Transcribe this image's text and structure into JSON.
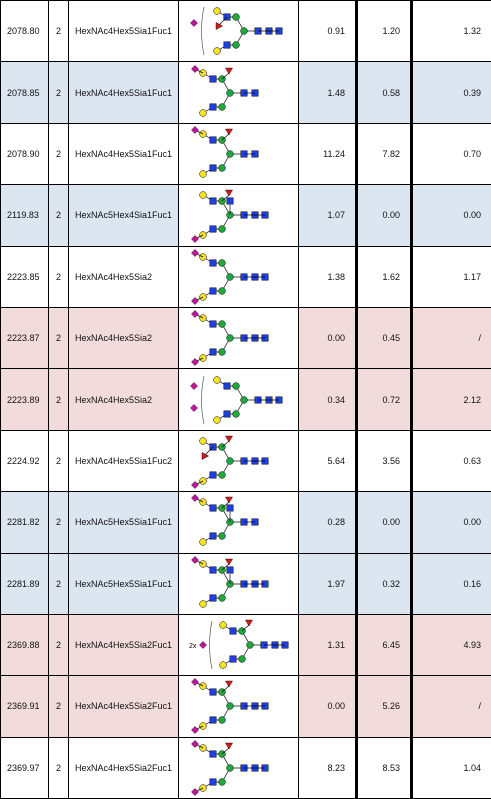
{
  "colors": {
    "row_white": "#ffffff",
    "row_blue": "#dce6f1",
    "row_pink": "#f2dcdb",
    "hexnac_square": "#1f3fe0",
    "hexose_mannose_circle": "#1fa83c",
    "galactose_circle": "#f5e51c",
    "sialic_acid_diamond": "#c0169c",
    "fucose_triangle": "#d31a1a"
  },
  "rows": [
    {
      "mass": "2078.80",
      "charge": "2",
      "composition": "HexNAc4Hex5Sia1Fuc1",
      "glycan_icon": "bracket-sia-antenna-glycan-icon",
      "v1": "0.91",
      "v2": "1.20",
      "v3": "1.32",
      "shade": "white"
    },
    {
      "mass": "2078.85",
      "charge": "2",
      "composition": "HexNAc4Hex5Sia1Fuc1",
      "glycan_icon": "biantennary-fuc-top-glycan-icon",
      "v1": "1.48",
      "v2": "0.58",
      "v3": "0.39",
      "shade": "blue"
    },
    {
      "mass": "2078.90",
      "charge": "2",
      "composition": "HexNAc4Hex5Sia1Fuc1",
      "glycan_icon": "biantennary-fuc-top-glycan-icon",
      "v1": "11.24",
      "v2": "7.82",
      "v3": "0.70",
      "shade": "white"
    },
    {
      "mass": "2119.83",
      "charge": "2",
      "composition": "HexNAc5Hex4Sia1Fuc1",
      "glycan_icon": "bisected-fuc-glycan-icon",
      "v1": "1.07",
      "v2": "0.00",
      "v3": "0.00",
      "shade": "blue"
    },
    {
      "mass": "2223.85",
      "charge": "2",
      "composition": "HexNAc4Hex5Sia2",
      "glycan_icon": "biantennary-two-sia-glycan-icon",
      "v1": "1.38",
      "v2": "1.62",
      "v3": "1.17",
      "shade": "white"
    },
    {
      "mass": "2223.87",
      "charge": "2",
      "composition": "HexNAc4Hex5Sia2",
      "glycan_icon": "biantennary-two-sia-glycan-icon",
      "v1": "0.00",
      "v2": "0.45",
      "v3": "/",
      "shade": "pink"
    },
    {
      "mass": "2223.89",
      "charge": "2",
      "composition": "HexNAc4Hex5Sia2",
      "glycan_icon": "bracket-two-sia-glycan-icon",
      "v1": "0.34",
      "v2": "0.72",
      "v3": "2.12",
      "shade": "pink"
    },
    {
      "mass": "2224.92",
      "charge": "2",
      "composition": "HexNAc4Hex5Sia1Fuc2",
      "glycan_icon": "biantennary-two-fuc-glycan-icon",
      "v1": "5.64",
      "v2": "3.56",
      "v3": "0.63",
      "shade": "white"
    },
    {
      "mass": "2281.82",
      "charge": "2",
      "composition": "HexNAc5Hex5Sia1Fuc1",
      "glycan_icon": "hybrid-sia-fuc-glycan-icon",
      "v1": "0.28",
      "v2": "0.00",
      "v3": "0.00",
      "shade": "blue"
    },
    {
      "mass": "2281.89",
      "charge": "2",
      "composition": "HexNAc5Hex5Sia1Fuc1",
      "glycan_icon": "bisected-biantennary-fuc-glycan-icon",
      "v1": "1.97",
      "v2": "0.32",
      "v3": "0.16",
      "shade": "blue"
    },
    {
      "mass": "2369.88",
      "charge": "2",
      "composition": "HexNAc4Hex5Sia2Fuc1",
      "glycan_icon": "bracket-2x-sia-fuc-glycan-icon",
      "v1": "1.31",
      "v2": "6.45",
      "v3": "4.93",
      "shade": "pink",
      "glycan_multiplier": "2x"
    },
    {
      "mass": "2369.91",
      "charge": "2",
      "composition": "HexNAc4Hex5Sia2Fuc1",
      "glycan_icon": "biantennary-two-sia-fuc-glycan-icon",
      "v1": "0.00",
      "v2": "5.26",
      "v3": "/",
      "shade": "pink"
    },
    {
      "mass": "2369.97",
      "charge": "2",
      "composition": "HexNAc4Hex5Sia2Fuc1",
      "glycan_icon": "biantennary-two-sia-fuc-glycan-icon",
      "v1": "8.23",
      "v2": "8.53",
      "v3": "1.04",
      "shade": "white"
    }
  ]
}
